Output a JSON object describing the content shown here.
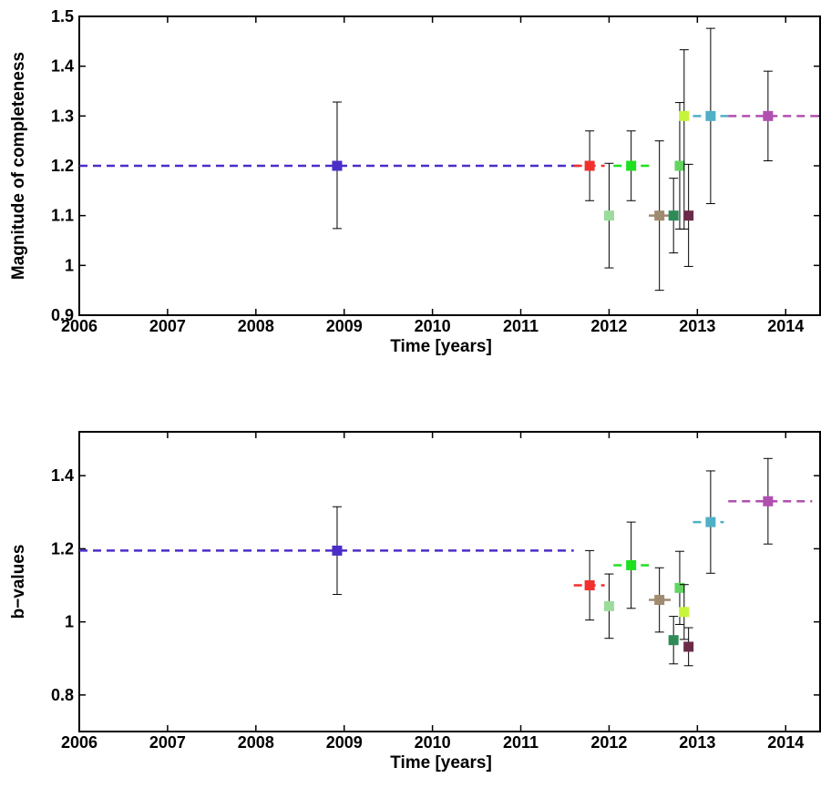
{
  "chart_data": [
    {
      "type": "scatter",
      "xlabel": "Time [years]",
      "ylabel": "Magnitude of completeness",
      "xlim": [
        2006,
        2014.4
      ],
      "ylim": [
        0.9,
        1.5
      ],
      "xticks": [
        2006,
        2007,
        2008,
        2009,
        2010,
        2011,
        2012,
        2013,
        2014
      ],
      "yticks": [
        0.9,
        1,
        1.1,
        1.2,
        1.3,
        1.4,
        1.5
      ],
      "ytick_labels": [
        "0.9",
        "1",
        "1.1",
        "1.2",
        "1.3",
        "1.4",
        "1.5"
      ],
      "grid": false,
      "series": [
        {
          "color": "#4B2DC8",
          "x": 2008.92,
          "y": 1.2,
          "err_low": 0.126,
          "err_high": 0.128,
          "range": [
            2006,
            2011.7
          ]
        },
        {
          "color": "#F22F2F",
          "x": 2011.78,
          "y": 1.2,
          "err_low": 0.07,
          "err_high": 0.07,
          "range": [
            2011.6,
            2011.95
          ]
        },
        {
          "color": "#9BDB9B",
          "x": 2012.0,
          "y": 1.1,
          "err_low": 0.105,
          "err_high": 0.105,
          "range": [
            2011.95,
            2012.05
          ]
        },
        {
          "color": "#1FE01F",
          "x": 2012.25,
          "y": 1.2,
          "err_low": 0.07,
          "err_high": 0.07,
          "range": [
            2012.05,
            2012.5
          ]
        },
        {
          "color": "#A08A70",
          "x": 2012.57,
          "y": 1.1,
          "err_low": 0.15,
          "err_high": 0.15,
          "range": [
            2012.45,
            2012.72
          ]
        },
        {
          "color": "#2E8B57",
          "x": 2012.73,
          "y": 1.1,
          "err_low": 0.075,
          "err_high": 0.075,
          "range": [
            2012.68,
            2012.78
          ]
        },
        {
          "color": "#63D463",
          "x": 2012.8,
          "y": 1.2,
          "err_low": 0.127,
          "err_high": 0.127,
          "range": [
            2012.77,
            2012.83
          ]
        },
        {
          "color": "#C6F53C",
          "x": 2012.85,
          "y": 1.3,
          "err_low": 0.227,
          "err_high": 0.133,
          "range": [
            2012.82,
            2012.88
          ]
        },
        {
          "color": "#6B2B48",
          "x": 2012.9,
          "y": 1.1,
          "err_low": 0.102,
          "err_high": 0.103,
          "range": [
            2012.87,
            2012.95
          ]
        },
        {
          "color": "#4FB0C8",
          "x": 2013.15,
          "y": 1.3,
          "err_low": 0.176,
          "err_high": 0.176,
          "range": [
            2012.95,
            2013.35
          ]
        },
        {
          "color": "#B04FB0",
          "x": 2013.8,
          "y": 1.3,
          "err_low": 0.09,
          "err_high": 0.09,
          "range": [
            2013.35,
            2014.4
          ]
        }
      ]
    },
    {
      "type": "scatter",
      "xlabel": "Time [years]",
      "ylabel": "b−values",
      "xlim": [
        2006,
        2014.4
      ],
      "ylim": [
        0.7,
        1.52
      ],
      "xticks": [
        2006,
        2007,
        2008,
        2009,
        2010,
        2011,
        2012,
        2013,
        2014
      ],
      "yticks": [
        0.8,
        1.0,
        1.2,
        1.4
      ],
      "ytick_labels": [
        "0.8",
        "1",
        "1.2",
        "1.4"
      ],
      "grid": false,
      "series": [
        {
          "color": "#4B2DC8",
          "x": 2008.92,
          "y": 1.195,
          "err_low": 0.12,
          "err_high": 0.12,
          "range": [
            2006,
            2011.6
          ]
        },
        {
          "color": "#F22F2F",
          "x": 2011.78,
          "y": 1.1,
          "err_low": 0.095,
          "err_high": 0.095,
          "range": [
            2011.6,
            2011.95
          ]
        },
        {
          "color": "#9BDB9B",
          "x": 2012.0,
          "y": 1.043,
          "err_low": 0.088,
          "err_high": 0.088,
          "range": [
            2011.95,
            2012.05
          ]
        },
        {
          "color": "#1FE01F",
          "x": 2012.25,
          "y": 1.155,
          "err_low": 0.118,
          "err_high": 0.118,
          "range": [
            2012.05,
            2012.45
          ]
        },
        {
          "color": "#A08A70",
          "x": 2012.57,
          "y": 1.06,
          "err_low": 0.088,
          "err_high": 0.088,
          "range": [
            2012.45,
            2012.72
          ]
        },
        {
          "color": "#2E8B57",
          "x": 2012.73,
          "y": 0.95,
          "err_low": 0.065,
          "err_high": 0.065,
          "range": [
            2012.68,
            2012.78
          ]
        },
        {
          "color": "#63D463",
          "x": 2012.8,
          "y": 1.093,
          "err_low": 0.1,
          "err_high": 0.1,
          "range": [
            2012.77,
            2012.83
          ]
        },
        {
          "color": "#C6F53C",
          "x": 2012.85,
          "y": 1.027,
          "err_low": 0.075,
          "err_high": 0.075,
          "range": [
            2012.82,
            2012.88
          ]
        },
        {
          "color": "#6B2B48",
          "x": 2012.9,
          "y": 0.932,
          "err_low": 0.052,
          "err_high": 0.052,
          "range": [
            2012.87,
            2012.95
          ]
        },
        {
          "color": "#4FB0C8",
          "x": 2013.15,
          "y": 1.273,
          "err_low": 0.14,
          "err_high": 0.14,
          "range": [
            2012.95,
            2013.3
          ]
        },
        {
          "color": "#B04FB0",
          "x": 2013.8,
          "y": 1.33,
          "err_low": 0.117,
          "err_high": 0.117,
          "range": [
            2013.35,
            2014.3
          ]
        }
      ]
    }
  ]
}
